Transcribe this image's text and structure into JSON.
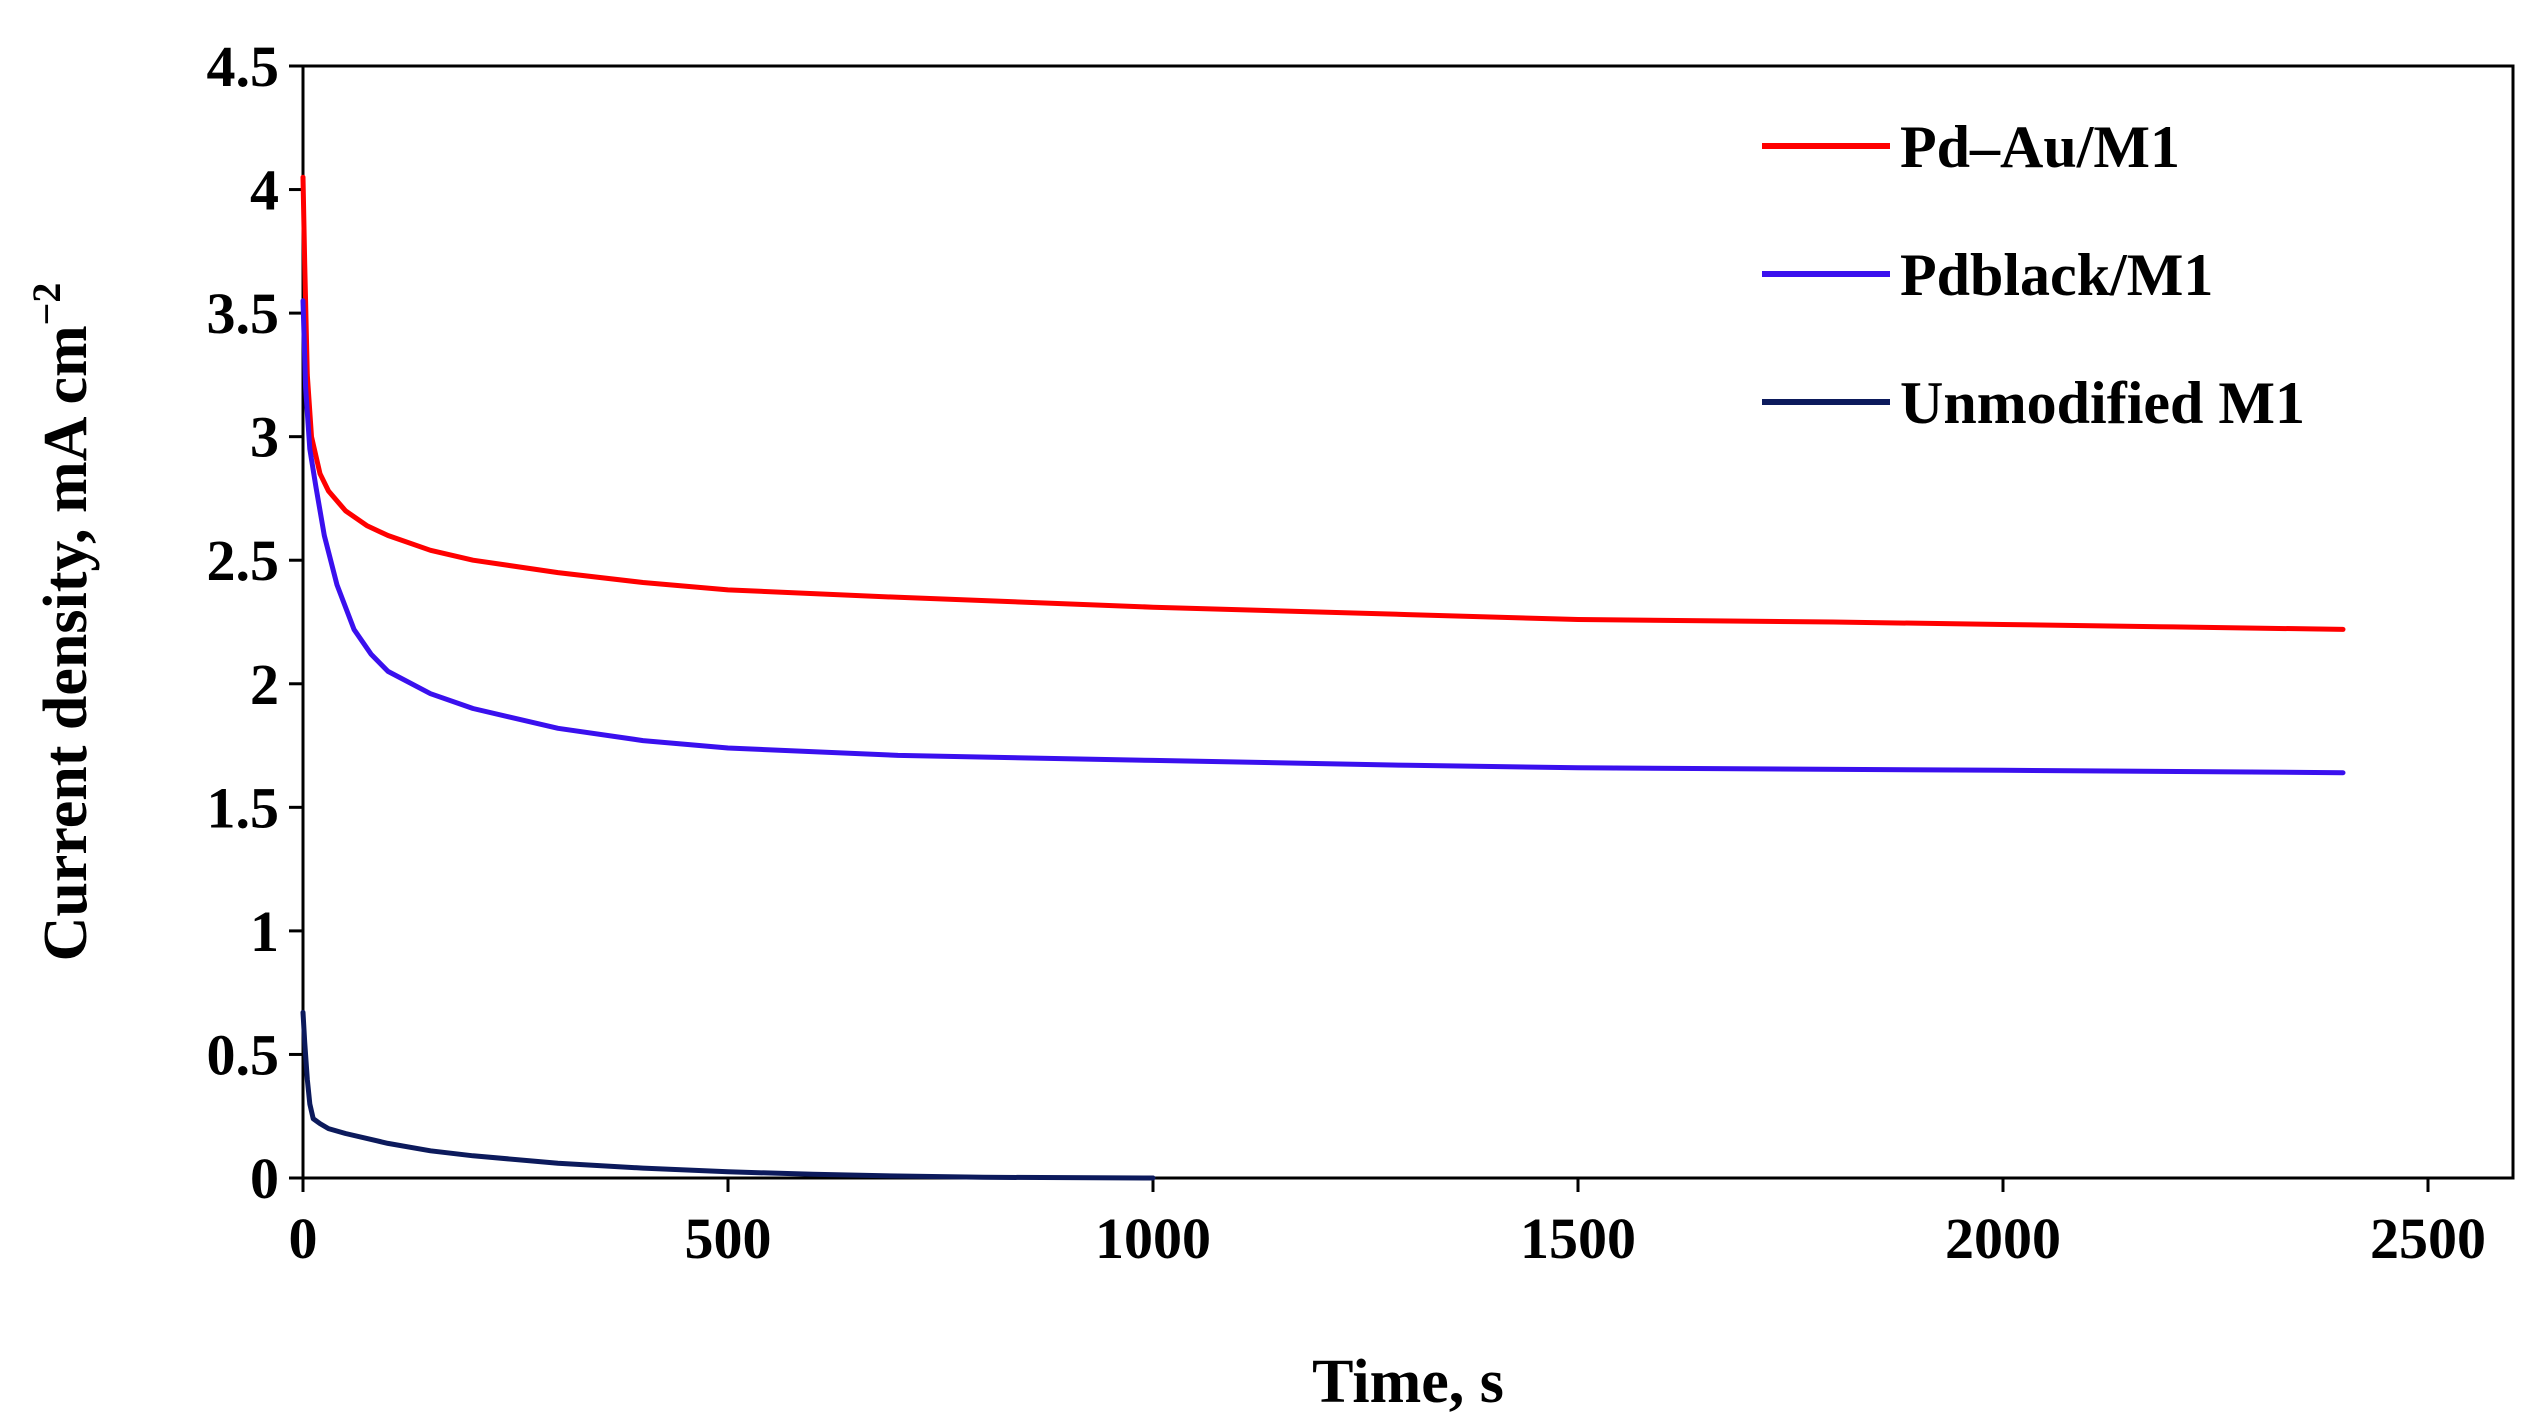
{
  "chart_data": {
    "type": "line",
    "title": "",
    "xlabel": "Time, s",
    "ylabel_main": "Current  density, mA cm",
    "ylabel_sup": "−2",
    "xlim": [
      0,
      2600
    ],
    "ylim": [
      0,
      4.5
    ],
    "xticks": [
      0,
      500,
      1000,
      1500,
      2000,
      2500
    ],
    "xtick_labels": [
      "0",
      "500",
      "1000",
      "1500",
      "2000",
      "2500"
    ],
    "yticks": [
      0,
      0.5,
      1,
      1.5,
      2,
      2.5,
      3,
      3.5,
      4,
      4.5
    ],
    "ytick_labels": [
      "0",
      "0.5",
      "1",
      "1.5",
      "2",
      "2.5",
      "3",
      "3.5",
      "4",
      "4.5"
    ],
    "grid": false,
    "legend_position": "top-right",
    "series": [
      {
        "name": "Pd–Au/M1",
        "color": "#ff0000",
        "x": [
          0,
          2,
          5,
          10,
          20,
          30,
          50,
          75,
          100,
          150,
          200,
          300,
          400,
          500,
          700,
          1000,
          1300,
          1500,
          1800,
          2000,
          2200,
          2400
        ],
        "y": [
          4.05,
          3.7,
          3.25,
          3.0,
          2.85,
          2.78,
          2.7,
          2.64,
          2.6,
          2.54,
          2.5,
          2.45,
          2.41,
          2.38,
          2.35,
          2.31,
          2.28,
          2.26,
          2.25,
          2.24,
          2.23,
          2.22
        ]
      },
      {
        "name": "Pdblack/M1",
        "color": "#3a10ee",
        "x": [
          0,
          3,
          8,
          15,
          25,
          40,
          60,
          80,
          100,
          150,
          200,
          300,
          400,
          500,
          700,
          1000,
          1300,
          1500,
          2000,
          2400
        ],
        "y": [
          3.55,
          3.2,
          2.95,
          2.8,
          2.6,
          2.4,
          2.22,
          2.12,
          2.05,
          1.96,
          1.9,
          1.82,
          1.77,
          1.74,
          1.71,
          1.69,
          1.67,
          1.66,
          1.65,
          1.64
        ]
      },
      {
        "name": "Unmodified M1",
        "color": "#0c1a5c",
        "x": [
          0,
          2,
          5,
          8,
          12,
          20,
          30,
          50,
          100,
          150,
          200,
          300,
          400,
          500,
          600,
          700,
          800,
          1000
        ],
        "y": [
          0.67,
          0.55,
          0.4,
          0.3,
          0.24,
          0.22,
          0.2,
          0.18,
          0.14,
          0.11,
          0.09,
          0.06,
          0.04,
          0.025,
          0.015,
          0.008,
          0.003,
          0.0
        ]
      }
    ]
  }
}
